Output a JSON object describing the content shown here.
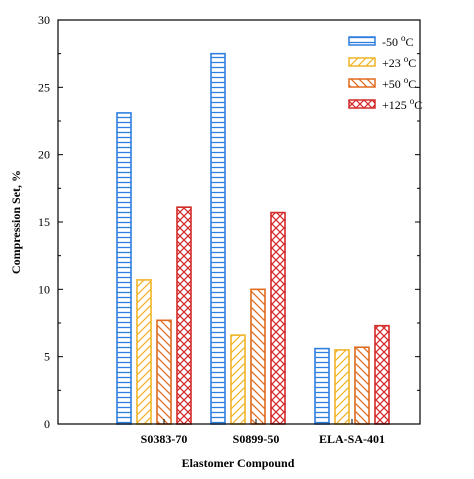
{
  "chart_data": {
    "type": "bar",
    "title": "",
    "xlabel": "Elastomer Compound",
    "ylabel": "Compression Set, %",
    "categories": [
      "S0383-70",
      "S0899-50",
      "ELA-SA-401"
    ],
    "ylim": [
      0,
      30
    ],
    "yticks": [
      "0",
      "5",
      "10",
      "15",
      "20",
      "25",
      "30"
    ],
    "grid": false,
    "legend_position": "top-right",
    "series": [
      {
        "name": "-50 °C",
        "legend_text": "-50",
        "values": [
          23.1,
          27.5,
          5.6
        ],
        "color": "#2f7fe0",
        "pattern": "horizontal-lines"
      },
      {
        "name": "+23 °C",
        "legend_text": "+23",
        "values": [
          10.7,
          6.6,
          5.5
        ],
        "color": "#f0b429",
        "pattern": "diagonal-lines"
      },
      {
        "name": "+50 °C",
        "legend_text": "+50",
        "values": [
          7.7,
          10.0,
          5.7
        ],
        "color": "#e06b1f",
        "pattern": "diagonal-lines-reverse"
      },
      {
        "name": "+125 °C",
        "legend_text": "+125",
        "values": [
          16.1,
          15.7,
          7.3
        ],
        "color": "#d42a2a",
        "pattern": "crosshatch"
      }
    ],
    "unit_superscript": "o",
    "unit_letter": "C"
  }
}
